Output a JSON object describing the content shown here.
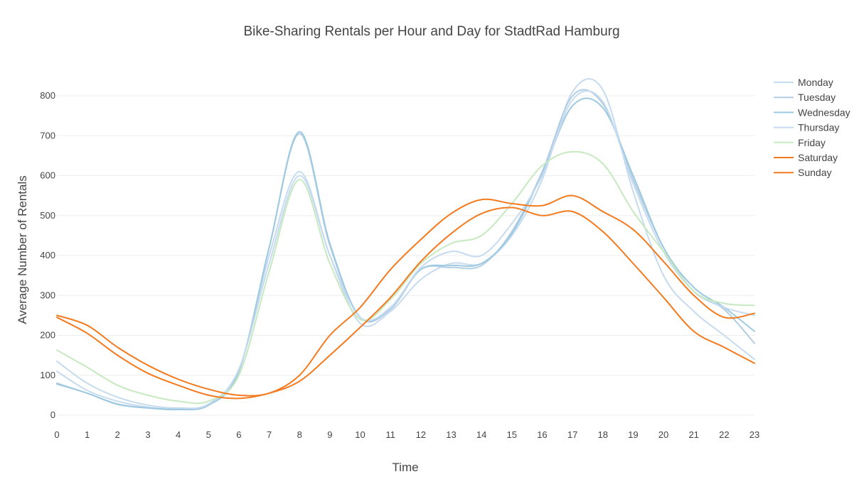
{
  "chart_data": {
    "type": "line",
    "title": "Bike-Sharing Rentals per Hour and Day for StadtRad Hamburg",
    "xlabel": "Time",
    "ylabel": "Average Number of Rentals",
    "x": [
      0,
      1,
      2,
      3,
      4,
      5,
      6,
      7,
      8,
      9,
      10,
      11,
      12,
      13,
      14,
      15,
      16,
      17,
      18,
      19,
      20,
      21,
      22,
      23
    ],
    "xlim": [
      0,
      23
    ],
    "ylim": [
      0,
      800
    ],
    "yticks": [
      0,
      100,
      200,
      300,
      400,
      500,
      600,
      700,
      800
    ],
    "grid": true,
    "legend_position": "top-right",
    "series": [
      {
        "name": "Monday",
        "color": "#c6dbef",
        "values": [
          110,
          62,
          35,
          20,
          15,
          25,
          110,
          400,
          610,
          400,
          230,
          260,
          340,
          380,
          380,
          450,
          590,
          810,
          815,
          560,
          350,
          260,
          200,
          140
        ]
      },
      {
        "name": "Tuesday",
        "color": "#b3cde3",
        "values": [
          80,
          55,
          28,
          18,
          15,
          25,
          110,
          420,
          705,
          425,
          245,
          265,
          365,
          370,
          375,
          460,
          610,
          800,
          780,
          590,
          420,
          310,
          265,
          180
        ]
      },
      {
        "name": "Wednesday",
        "color": "#9ecae1",
        "values": [
          78,
          55,
          27,
          18,
          14,
          25,
          110,
          420,
          710,
          430,
          245,
          270,
          365,
          375,
          380,
          455,
          605,
          775,
          770,
          600,
          420,
          320,
          270,
          210
        ]
      },
      {
        "name": "Thursday",
        "color": "#c6dbef",
        "values": [
          135,
          80,
          45,
          25,
          18,
          28,
          115,
          380,
          600,
          400,
          245,
          270,
          370,
          410,
          400,
          480,
          600,
          790,
          785,
          580,
          410,
          310,
          270,
          250
        ]
      },
      {
        "name": "Friday",
        "color": "#c7e9c0",
        "values": [
          163,
          120,
          75,
          50,
          35,
          35,
          100,
          360,
          590,
          380,
          240,
          290,
          380,
          430,
          450,
          530,
          625,
          660,
          630,
          510,
          410,
          310,
          280,
          275
        ]
      },
      {
        "name": "Saturday",
        "color": "#f47a1f",
        "values": [
          250,
          225,
          170,
          125,
          90,
          65,
          50,
          55,
          100,
          200,
          270,
          365,
          440,
          505,
          540,
          530,
          525,
          550,
          510,
          465,
          385,
          300,
          245,
          255
        ]
      },
      {
        "name": "Sunday",
        "color": "#f47a1f",
        "values": [
          245,
          205,
          150,
          105,
          75,
          50,
          42,
          55,
          85,
          150,
          220,
          295,
          385,
          455,
          505,
          520,
          500,
          510,
          460,
          380,
          295,
          210,
          170,
          130
        ]
      }
    ]
  }
}
